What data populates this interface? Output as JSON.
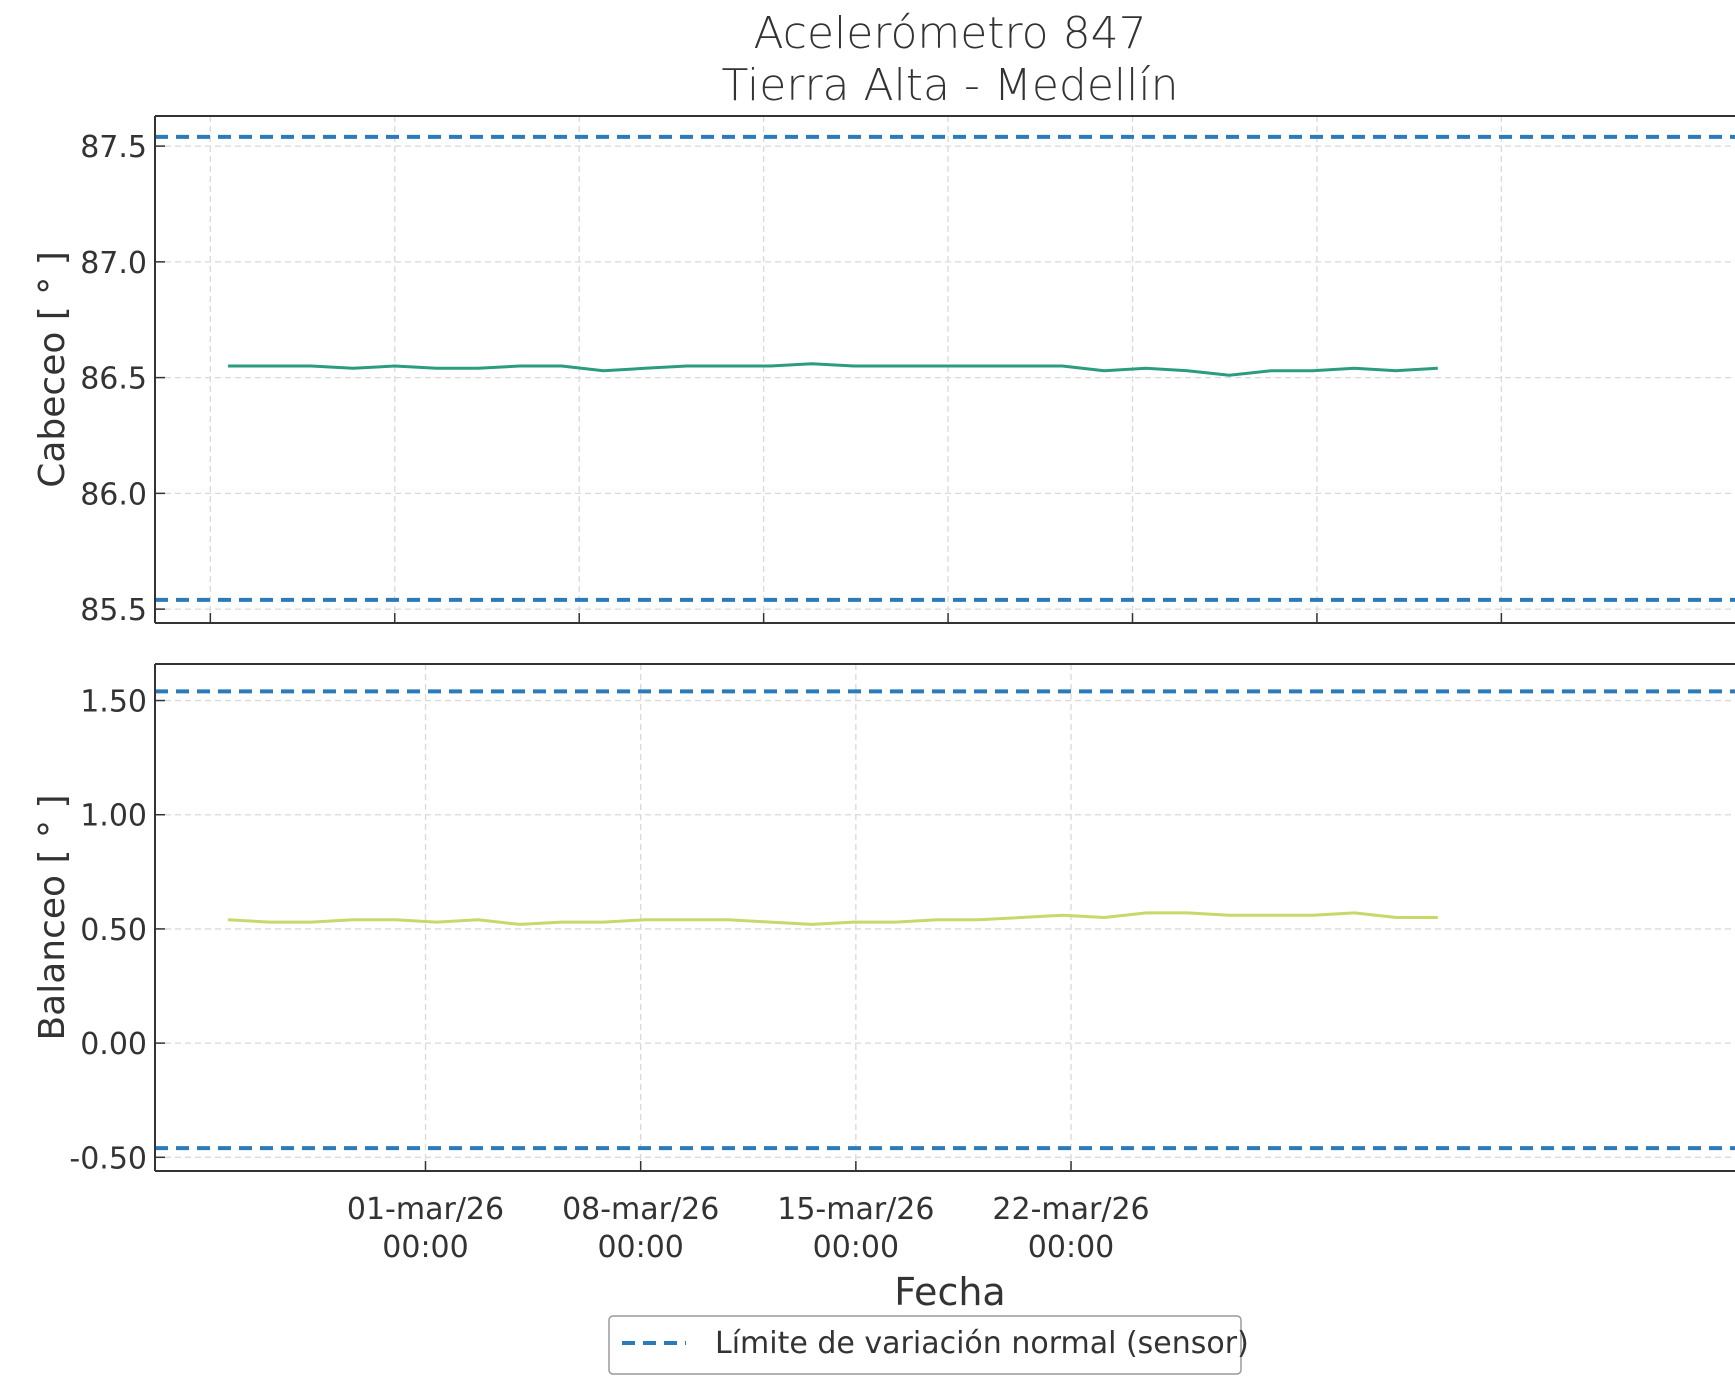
{
  "title": [
    "Acelerómetro 847",
    "Tierra Alta - Medellín"
  ],
  "xlabel": "Fecha",
  "legend": {
    "label": "Límite de variación normal (sensor)",
    "color": "#2b7bba"
  },
  "chart_data": [
    {
      "type": "line",
      "ylabel": "Cabeceo [ ° ]",
      "ylim": [
        85.44,
        87.63
      ],
      "yticks": [
        85.5,
        86.0,
        86.5,
        87.0,
        87.5
      ],
      "ytick_labels": [
        "85.5",
        "86.0",
        "86.5",
        "87.0",
        "87.5"
      ],
      "xlim": [
        -8.8,
        42.6
      ],
      "grid": true,
      "line_color": "#2a9d7f",
      "series": [
        {
          "x": [
            -6.43,
            -5.07,
            -3.72,
            -2.36,
            -1.0,
            0.36,
            1.71,
            3.07,
            4.43,
            5.79,
            7.14,
            8.5,
            9.86,
            11.22,
            12.57,
            13.93,
            15.29,
            16.65,
            18.0,
            19.36,
            20.72,
            22.08,
            23.43,
            24.79,
            26.15,
            27.51,
            28.86,
            30.22,
            31.58,
            32.93
          ],
          "y": [
            86.55,
            86.55,
            86.55,
            86.54,
            86.55,
            86.54,
            86.54,
            86.55,
            86.55,
            86.53,
            86.54,
            86.55,
            86.55,
            86.55,
            86.56,
            86.55,
            86.55,
            86.55,
            86.55,
            86.55,
            86.55,
            86.53,
            86.54,
            86.53,
            86.51,
            86.53,
            86.53,
            86.54,
            86.53,
            86.54
          ]
        }
      ],
      "limits": [
        85.54,
        87.54
      ]
    },
    {
      "type": "line",
      "ylabel": "Balanceo [ ° ]",
      "ylim": [
        -0.56,
        1.66
      ],
      "yticks": [
        -0.5,
        0.0,
        0.5,
        1.0,
        1.5
      ],
      "ytick_labels": [
        "-0.50",
        "0.00",
        "0.50",
        "1.00",
        "1.50"
      ],
      "xlim": [
        -8.8,
        42.6
      ],
      "grid": true,
      "line_color": "#c8d86a",
      "xticks": [
        0,
        7,
        14,
        21
      ],
      "xtick_labels": [
        [
          "01-mar/26",
          "00:00"
        ],
        [
          "08-mar/26",
          "00:00"
        ],
        [
          "15-mar/26",
          "00:00"
        ],
        [
          "22-mar/26",
          "00:00"
        ]
      ],
      "series": [
        {
          "x": [
            -6.43,
            -5.07,
            -3.72,
            -2.36,
            -1.0,
            0.36,
            1.71,
            3.07,
            4.43,
            5.79,
            7.14,
            8.5,
            9.86,
            11.22,
            12.57,
            13.93,
            15.29,
            16.65,
            18.0,
            19.36,
            20.72,
            22.08,
            23.43,
            24.79,
            26.15,
            27.51,
            28.86,
            30.22,
            31.58,
            32.93
          ],
          "y": [
            0.54,
            0.53,
            0.53,
            0.54,
            0.54,
            0.53,
            0.54,
            0.52,
            0.53,
            0.53,
            0.54,
            0.54,
            0.54,
            0.53,
            0.52,
            0.53,
            0.53,
            0.54,
            0.54,
            0.55,
            0.56,
            0.55,
            0.57,
            0.57,
            0.56,
            0.56,
            0.56,
            0.57,
            0.55,
            0.55
          ]
        }
      ],
      "limits": [
        -0.46,
        1.54
      ]
    }
  ]
}
